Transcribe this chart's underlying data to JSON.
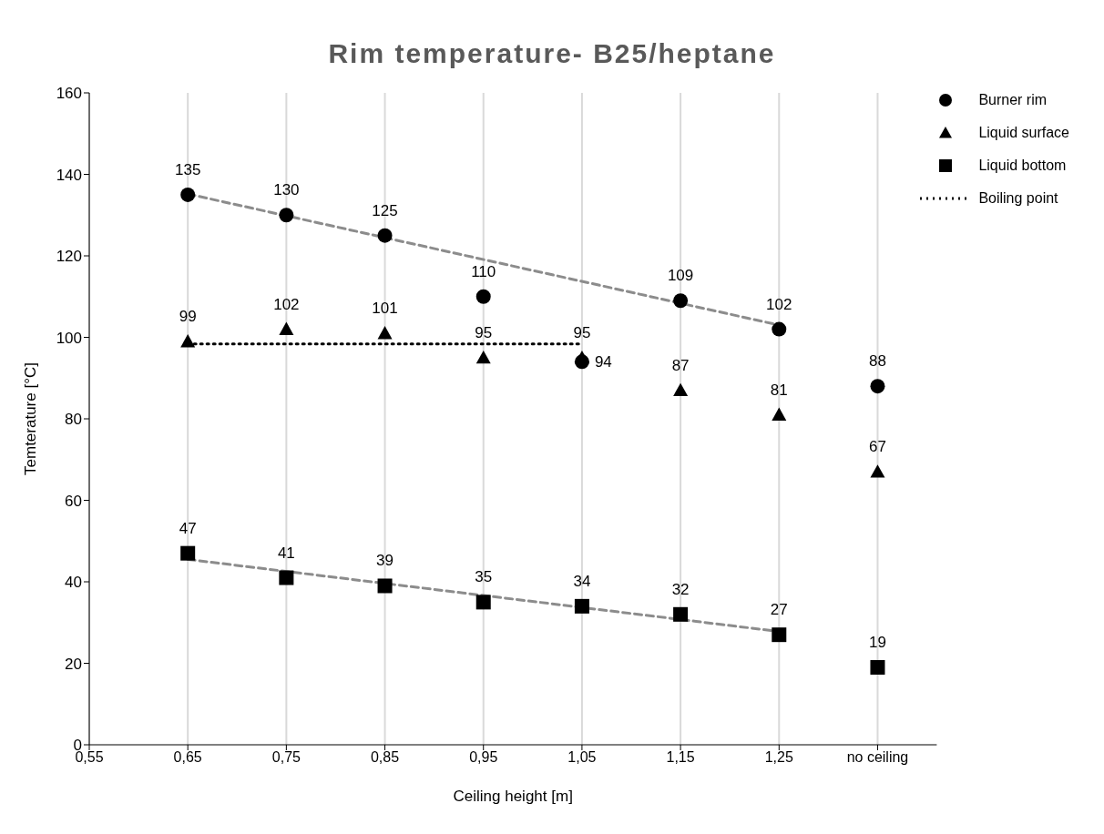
{
  "chart_data": {
    "type": "scatter",
    "title": "Rim temperature- B25/heptane",
    "xlabel": "Ceiling height [m]",
    "ylabel": "Temterature [°C]",
    "x": [
      0.65,
      0.75,
      0.85,
      0.95,
      1.05,
      1.15,
      1.25,
      1.35
    ],
    "series": [
      {
        "name": "Burner rim",
        "color": "#000000",
        "marker": "circle",
        "values": [
          135,
          130,
          125,
          110,
          94,
          109,
          102,
          88
        ],
        "value_labels": [
          "135",
          "130",
          "125",
          "110",
          "94",
          "109",
          "102",
          "88"
        ]
      },
      {
        "name": "Liquid surface",
        "color": "#000000",
        "marker": "triangle",
        "values": [
          99,
          102,
          101,
          95,
          95,
          87,
          81,
          67
        ],
        "value_labels": [
          "99",
          "102",
          "101",
          "95",
          "95",
          "87",
          "81",
          "67"
        ]
      },
      {
        "name": "Liquid bottom",
        "color": "#000000",
        "marker": "square",
        "values": [
          47,
          41,
          39,
          35,
          34,
          32,
          27,
          19
        ],
        "value_labels": [
          "47",
          "41",
          "39",
          "35",
          "34",
          "32",
          "27",
          "19"
        ]
      },
      {
        "name": "Boiling point",
        "type": "line",
        "color": "#000000",
        "line_style": "dotted",
        "marker": "none",
        "x": [
          0.65,
          1.05
        ],
        "values": [
          98.4,
          98.4
        ]
      },
      {
        "type": "line",
        "color": "#8c8c8c",
        "line_style": "dashed",
        "marker": "none",
        "x": [
          0.65,
          1.25
        ],
        "values": [
          135.2,
          103
        ]
      },
      {
        "type": "line",
        "color": "#8c8c8c",
        "line_style": "dashed",
        "marker": "none",
        "x": [
          0.65,
          1.25
        ],
        "values": [
          45.5,
          27.8
        ]
      }
    ],
    "xlim": [
      0.55,
      1.41
    ],
    "xticks": [
      {
        "value": 0.55,
        "label": "0,55"
      },
      {
        "value": 0.65,
        "label": "0,65"
      },
      {
        "value": 0.75,
        "label": "0,75"
      },
      {
        "value": 0.85,
        "label": "0,85"
      },
      {
        "value": 0.95,
        "label": "0,95"
      },
      {
        "value": 1.05,
        "label": "1,05"
      },
      {
        "value": 1.15,
        "label": "1,15"
      },
      {
        "value": 1.25,
        "label": "1,25"
      },
      {
        "value": 1.35,
        "label": "no ceiling"
      }
    ],
    "ylim": [
      0,
      160
    ],
    "yticks": [
      0,
      20,
      40,
      60,
      80,
      100,
      120,
      140,
      160
    ],
    "grid": "x",
    "legend": "top right"
  }
}
